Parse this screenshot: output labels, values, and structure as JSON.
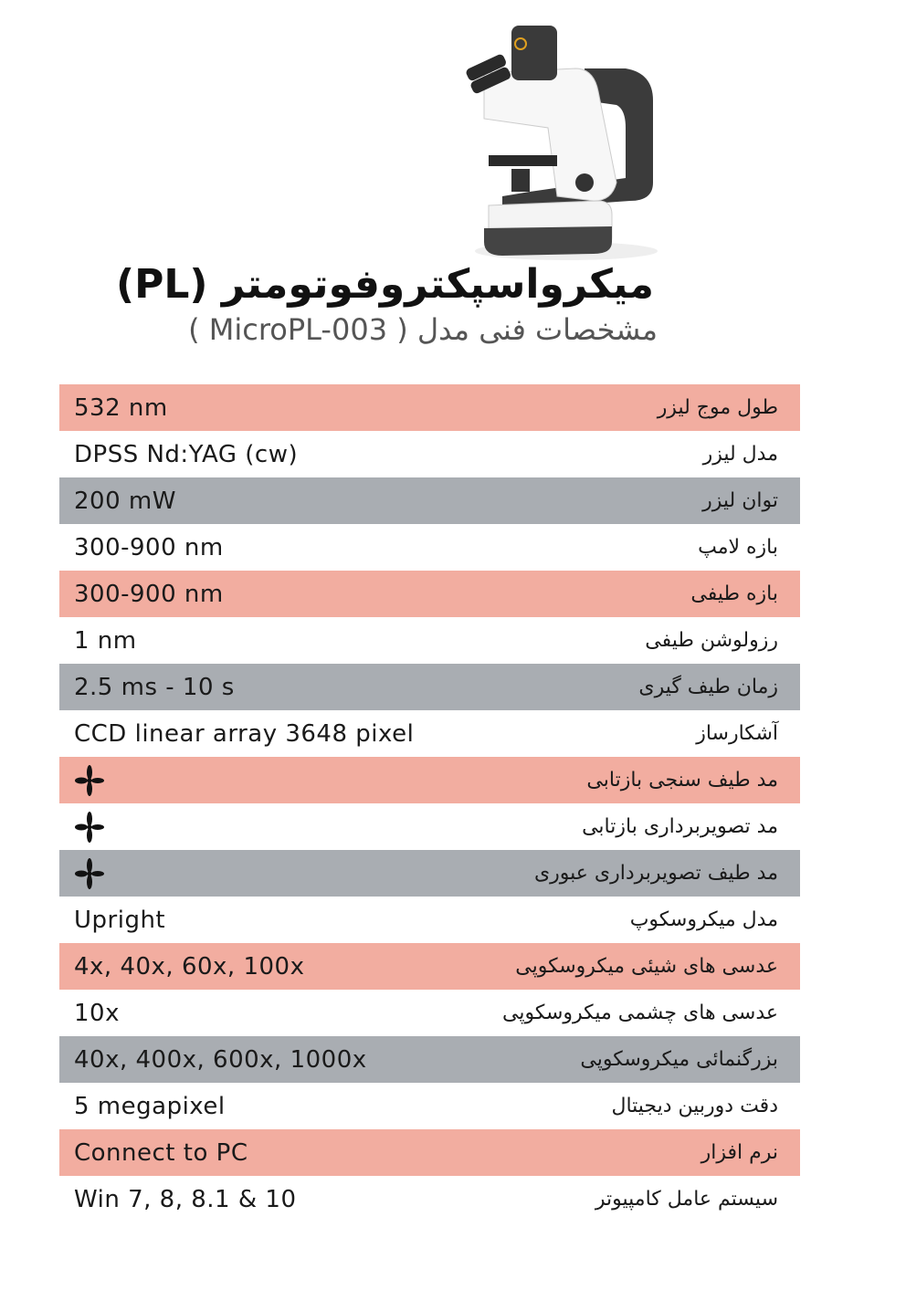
{
  "header": {
    "title": "میکرواسپکتروفوتومتر (PL)",
    "subtitle": "مشخصات فنی  مدل ( MicroPL-003 )"
  },
  "colors": {
    "pink": "#f2ada0",
    "gray": "#a9adb2"
  },
  "specs": [
    {
      "key": "طول موج لیزر",
      "value": "532 nm",
      "bg": "pink"
    },
    {
      "key": "مدل لیزر",
      "value": "DPSS Nd:YAG (cw)",
      "bg": "white"
    },
    {
      "key": "توان لیزر",
      "value": "200 mW",
      "bg": "gray"
    },
    {
      "key": "بازه لامپ",
      "value": "300-900 nm",
      "bg": "white"
    },
    {
      "key": "بازه طیفی",
      "value": "300-900 nm",
      "bg": "pink"
    },
    {
      "key": "رزولوشن طیفی",
      "value": "1 nm",
      "bg": "white"
    },
    {
      "key": "زمان طیف گیری",
      "value": "2.5 ms - 10 s",
      "bg": "gray"
    },
    {
      "key": "آشکارساز",
      "value": "CCD linear array 3648 pixel",
      "bg": "white"
    },
    {
      "key": "مد  طیف سنجی بازتابی",
      "value": null,
      "icon": "four-petal-check-icon",
      "bg": "pink"
    },
    {
      "key": "مد  تصویربرداری بازتابی",
      "value": null,
      "icon": "four-petal-check-icon",
      "bg": "white"
    },
    {
      "key": "مد  طیف تصویربرداری عبوری",
      "value": null,
      "icon": "four-petal-check-icon",
      "bg": "gray"
    },
    {
      "key": "مدل میکروسکوپ",
      "value": "Upright",
      "bg": "white"
    },
    {
      "key": "عدسی های شیئی میکروسکوپی",
      "value": "4x, 40x, 60x, 100x",
      "bg": "pink"
    },
    {
      "key": "عدسی های چشمی میکروسکوپی",
      "value": "10x",
      "bg": "white"
    },
    {
      "key": "بزرگنمائی میکروسکوپی",
      "value": "40x, 400x, 600x, 1000x",
      "bg": "gray"
    },
    {
      "key": "دقت دوربین دیجیتال",
      "value": "5 megapixel",
      "bg": "white"
    },
    {
      "key": "نرم افزار",
      "value": "Connect to PC",
      "bg": "pink"
    },
    {
      "key": "سیستم عامل کامپیوتر",
      "value": "Win 7, 8, 8.1 & 10",
      "bg": "white"
    }
  ]
}
